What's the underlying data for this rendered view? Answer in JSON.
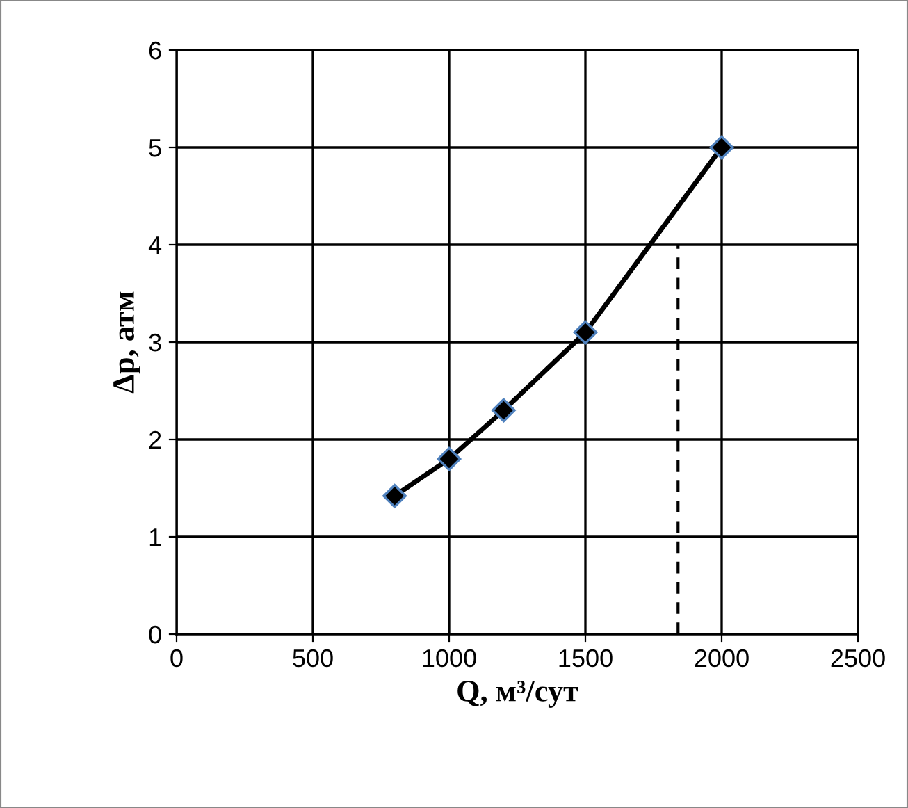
{
  "chart_data": {
    "type": "line",
    "xlabel": "Q, м³/сут",
    "ylabel": "Δp, атм",
    "series": [
      {
        "color": "#000000",
        "x": [
          800,
          1000,
          1200,
          1500,
          2000
        ],
        "values": [
          1.42,
          1.8,
          2.3,
          3.1,
          5.0
        ],
        "marker": "diamond",
        "line_style": "solid"
      },
      {
        "type": "line",
        "color": "#000000",
        "x": [
          1840,
          1840
        ],
        "values": [
          0,
          4
        ],
        "marker": "none",
        "line_style": "dashed"
      }
    ],
    "xlim": [
      0,
      2500
    ],
    "xticks": [
      0,
      500,
      1000,
      1500,
      2000,
      2500
    ],
    "ylim": [
      0,
      6
    ],
    "yticks": [
      0,
      1,
      2,
      3,
      4,
      5,
      6
    ],
    "grid": true,
    "legend": false
  }
}
